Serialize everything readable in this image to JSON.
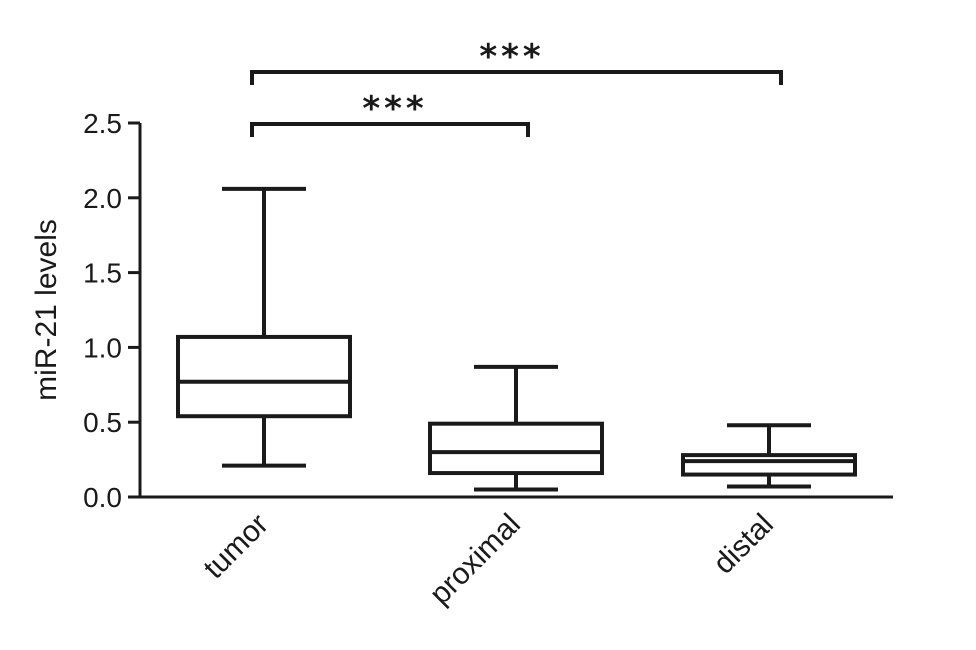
{
  "chart_data": {
    "type": "box",
    "title": "",
    "xlabel": "",
    "ylabel": "miR-21 levels",
    "ylim": [
      0,
      2.5
    ],
    "yticks": [
      0.0,
      0.5,
      1.0,
      1.5,
      2.0,
      2.5
    ],
    "ytick_labels": [
      "0.0",
      "0.5",
      "1.0",
      "1.5",
      "2.0",
      "2.5"
    ],
    "grid": false,
    "categories": [
      "tumor",
      "proximal",
      "distal"
    ],
    "boxes": [
      {
        "category": "tumor",
        "min": 0.21,
        "q1": 0.54,
        "median": 0.77,
        "q3": 1.07,
        "max": 2.06
      },
      {
        "category": "proximal",
        "min": 0.05,
        "q1": 0.16,
        "median": 0.3,
        "q3": 0.49,
        "max": 0.87
      },
      {
        "category": "distal",
        "min": 0.07,
        "q1": 0.15,
        "median": 0.24,
        "q3": 0.28,
        "max": 0.48
      }
    ],
    "significance": [
      {
        "from": "tumor",
        "to": "proximal",
        "label": "***"
      },
      {
        "from": "tumor",
        "to": "distal",
        "label": "***"
      }
    ],
    "colors": {
      "stroke": "#1a1a1a",
      "background": "#ffffff"
    }
  }
}
